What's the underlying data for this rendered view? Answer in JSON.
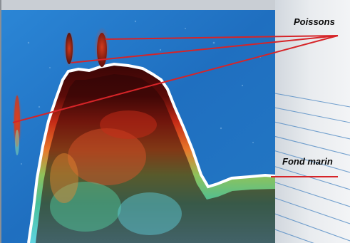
{
  "labels": {
    "fish": "Poissons",
    "seabed": "Fond marin"
  },
  "colors": {
    "water": "#1e74c6",
    "seabed_edge": "#ffffff",
    "seabed_dark": "#3a0606",
    "seabed_red": "#d6381d",
    "seabed_orange": "#ef9a2e",
    "seabed_green": "#49c08a",
    "seabed_cyan": "#5ed3e0",
    "pointer_line": "#d62428",
    "panel": "#dfe3e8",
    "panel_stripes": "#3f7fbf"
  },
  "icons": [
    "sonar-echogram-image"
  ]
}
